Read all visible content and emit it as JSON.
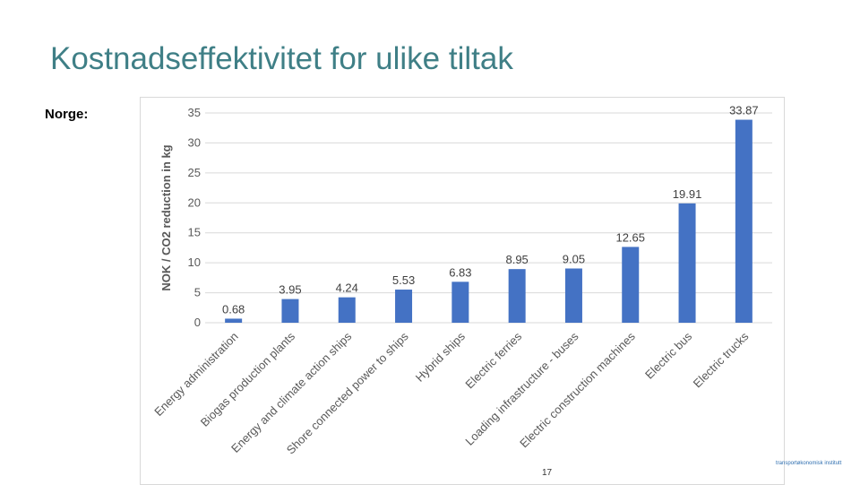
{
  "slide": {
    "title": "Kostnadseffektivitet for ulike tiltak",
    "region_label": "Norge:",
    "page_number": "17",
    "footer_logo_text": "transportøkonomisk institutt"
  },
  "colors": {
    "bar": "#4472c4",
    "grid": "#d9d9d9",
    "axis_text": "#595959",
    "title": "#3f7f86"
  },
  "chart_data": {
    "type": "bar",
    "title": "",
    "xlabel": "",
    "ylabel": "NOK / CO2 reduction in kg",
    "ylim": [
      0,
      35
    ],
    "yticks": [
      0,
      5,
      10,
      15,
      20,
      25,
      30,
      35
    ],
    "grid": true,
    "categories": [
      "Energy administration",
      "Biogas production plants",
      "Energy and climate action ships",
      "Shore connected power to ships",
      "Hybrid ships",
      "Electric ferries",
      "Loading infrastructure - buses",
      "Electric construction machines",
      "Electric bus",
      "Electric trucks"
    ],
    "values": [
      0.68,
      3.95,
      4.24,
      5.53,
      6.83,
      8.95,
      9.05,
      12.65,
      19.91,
      33.87
    ],
    "value_labels": [
      "0.68",
      "3.95",
      "4.24",
      "5.53",
      "6.83",
      "8.95",
      "9.05",
      "12.65",
      "19.91",
      "33.87"
    ]
  }
}
